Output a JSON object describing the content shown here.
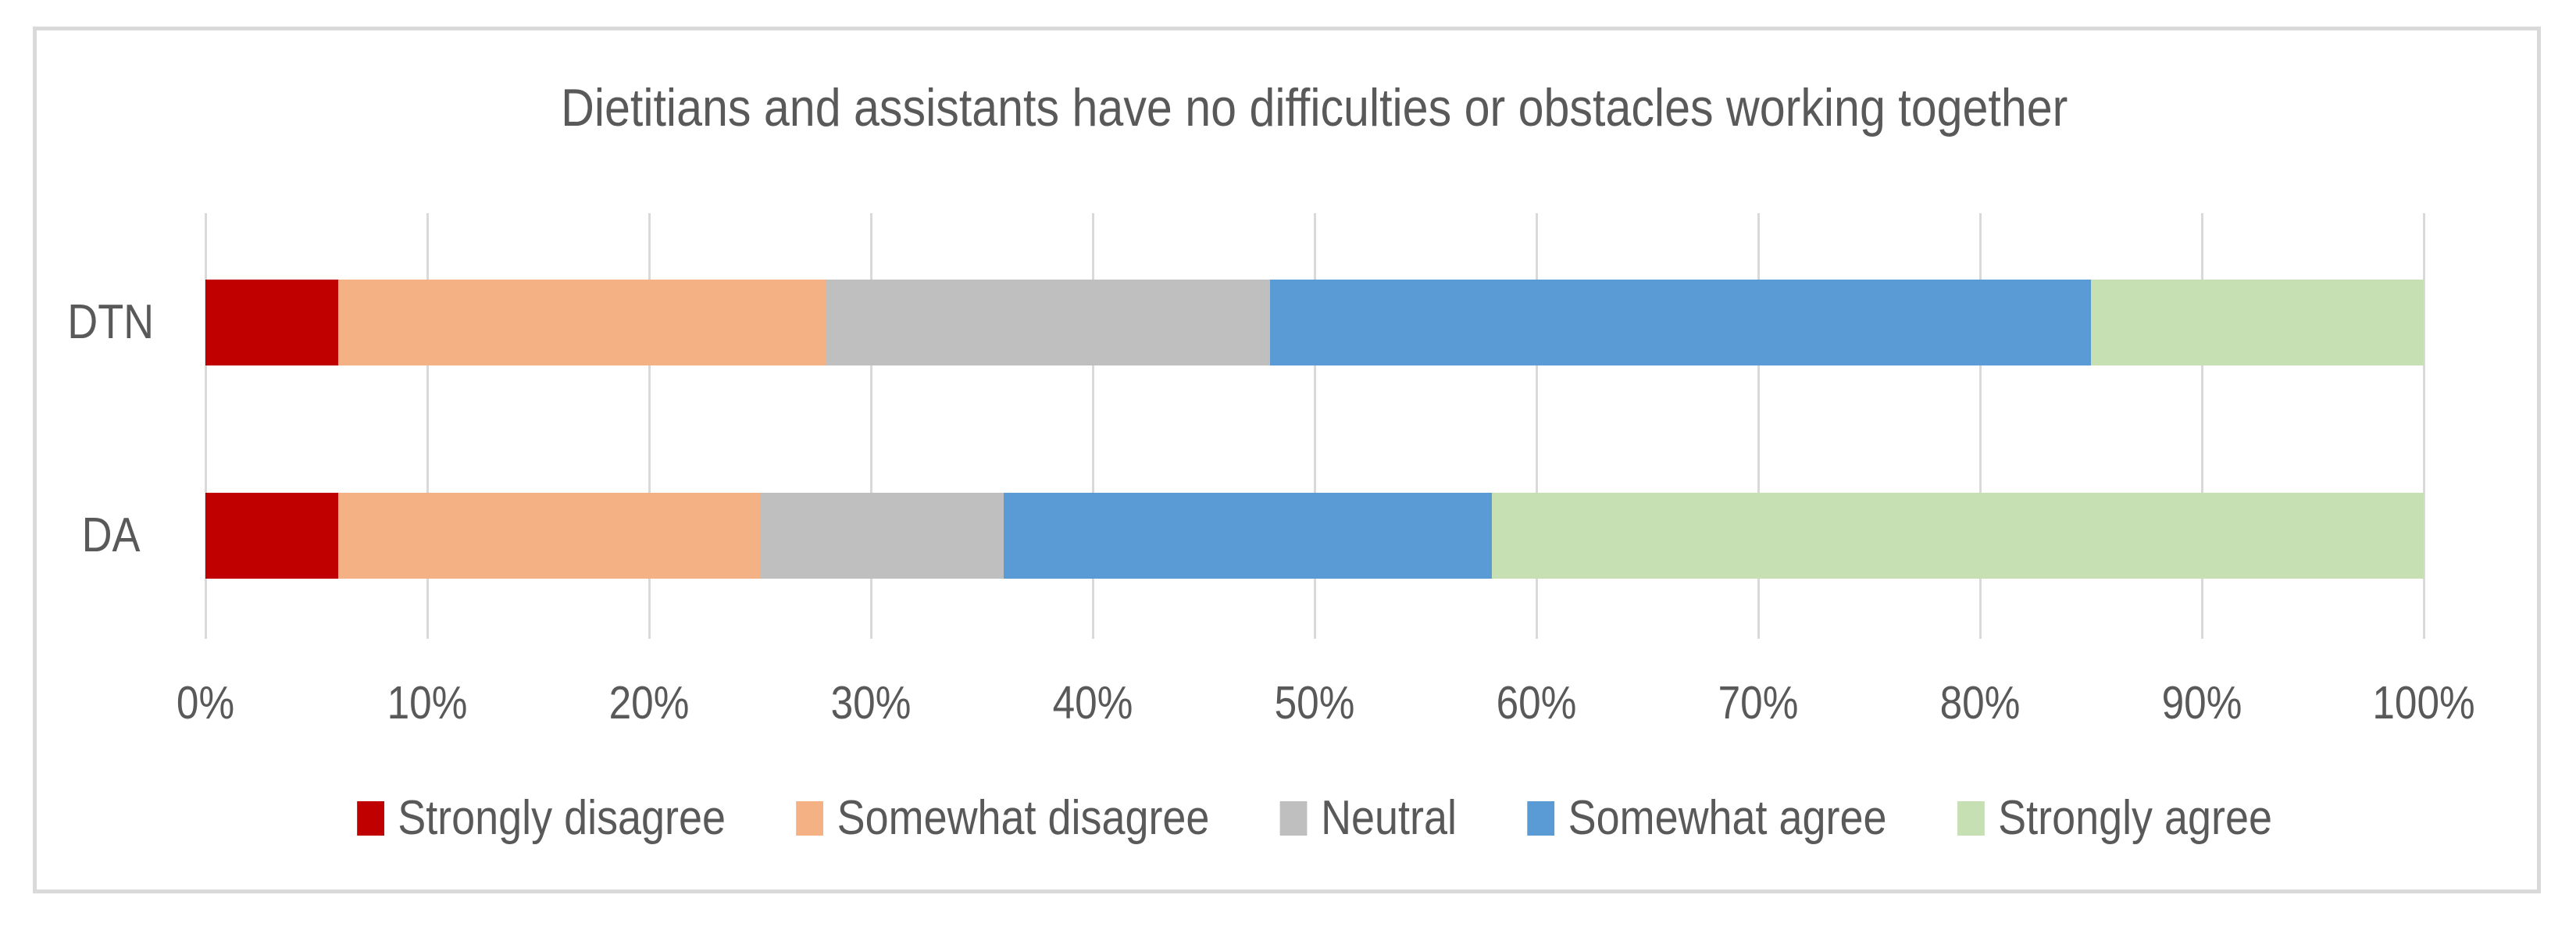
{
  "chart_data": {
    "type": "bar",
    "stacked": true,
    "orientation": "horizontal",
    "title": "Dietitians and assistants have no difficulties or obstacles working together",
    "categories": [
      "DTN",
      "DA"
    ],
    "series": [
      {
        "name": "Strongly disagree",
        "color": "#C00000",
        "values": [
          6,
          6
        ]
      },
      {
        "name": "Somewhat disagree",
        "color": "#F4B183",
        "values": [
          22,
          19
        ]
      },
      {
        "name": "Neutral",
        "color": "#BFBFBF",
        "values": [
          20,
          11
        ]
      },
      {
        "name": "Somewhat agree",
        "color": "#5B9BD5",
        "values": [
          37,
          22
        ]
      },
      {
        "name": "Strongly agree",
        "color": "#C6E0B4",
        "values": [
          15,
          42
        ]
      }
    ],
    "values_unit": "percent of responses",
    "xlim": [
      0,
      100
    ],
    "x_ticks": [
      "0%",
      "10%",
      "20%",
      "30%",
      "40%",
      "50%",
      "60%",
      "70%",
      "80%",
      "90%",
      "100%"
    ],
    "grid": "vertical",
    "legend_position": "bottom"
  },
  "style": {
    "text_color": "#595959",
    "gridline_color": "#D9D9D9",
    "frame_border_color": "#D9D9D9",
    "background_color": "#FFFFFF"
  }
}
